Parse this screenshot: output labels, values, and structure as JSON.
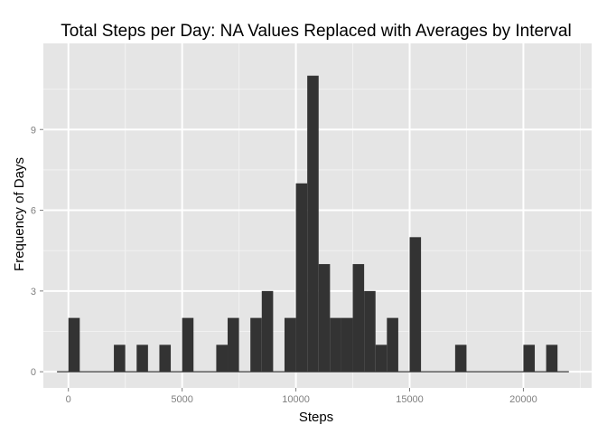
{
  "chart_data": {
    "type": "bar",
    "title": "Total Steps per Day:  NA Values Replaced with Averages by Interval",
    "xlabel": "Steps",
    "ylabel": "Frequency of Days",
    "xlim": [
      -1100,
      23000
    ],
    "ylim": [
      -0.6,
      12.2
    ],
    "x_ticks": [
      0,
      5000,
      10000,
      15000,
      20000
    ],
    "x_tick_labels": [
      "0",
      "5000",
      "10000",
      "15000",
      "20000"
    ],
    "y_ticks": [
      0,
      3,
      6,
      9
    ],
    "y_tick_labels": [
      "0",
      "3",
      "6",
      "9"
    ],
    "grid": true,
    "legend": "none",
    "bin_width": 500,
    "bins": [
      {
        "start": 0,
        "count": 2
      },
      {
        "start": 2000,
        "count": 1
      },
      {
        "start": 3000,
        "count": 1
      },
      {
        "start": 4000,
        "count": 1
      },
      {
        "start": 5000,
        "count": 2
      },
      {
        "start": 6500,
        "count": 1
      },
      {
        "start": 7000,
        "count": 2
      },
      {
        "start": 8000,
        "count": 2
      },
      {
        "start": 8500,
        "count": 3
      },
      {
        "start": 9500,
        "count": 2
      },
      {
        "start": 10000,
        "count": 7
      },
      {
        "start": 10500,
        "count": 11
      },
      {
        "start": 11000,
        "count": 4
      },
      {
        "start": 11500,
        "count": 2
      },
      {
        "start": 12000,
        "count": 2
      },
      {
        "start": 12500,
        "count": 4
      },
      {
        "start": 13000,
        "count": 3
      },
      {
        "start": 13500,
        "count": 1
      },
      {
        "start": 14000,
        "count": 2
      },
      {
        "start": 15000,
        "count": 5
      },
      {
        "start": 17000,
        "count": 1
      },
      {
        "start": 20000,
        "count": 1
      },
      {
        "start": 21000,
        "count": 1
      }
    ],
    "baseline_range": [
      -500,
      22000
    ],
    "colors": {
      "panel": "#e5e5e5",
      "grid_major": "#ffffff",
      "grid_minor": "#f2f2f2",
      "bar": "#333333",
      "tick_text": "#7f7f7f"
    }
  }
}
